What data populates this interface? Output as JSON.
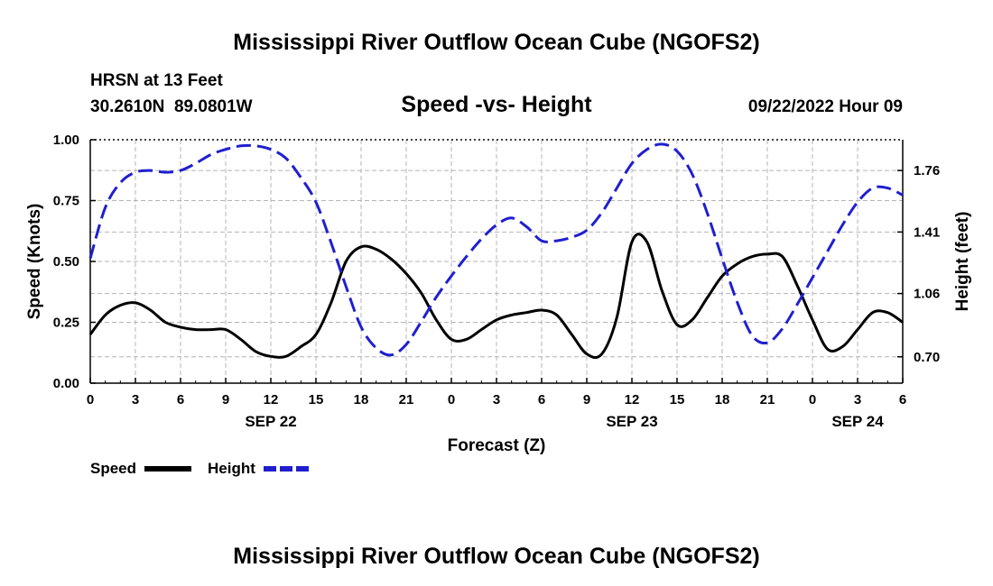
{
  "title": "Mississippi River Outflow Ocean Cube (NGOFS2)",
  "footer_title": "Mississippi River Outflow Ocean Cube (NGOFS2)",
  "station": {
    "name": "HRSN at 13 Feet",
    "coords": "30.2610N  89.0801W",
    "datetime": "09/22/2022 Hour 09"
  },
  "chart_data": {
    "type": "line",
    "title": "Speed -vs- Height",
    "xlabel": "Forecast (Z)",
    "ylabel": "Speed (Knots)",
    "y2label": "Height (feet)",
    "xlim": [
      0,
      54
    ],
    "ylim": [
      0,
      1.0
    ],
    "y2lim": [
      0.55,
      1.935
    ],
    "x_ticks": [
      0,
      3,
      6,
      9,
      12,
      15,
      18,
      21,
      24,
      27,
      30,
      33,
      36,
      39,
      42,
      45,
      48,
      51,
      54
    ],
    "x_tick_labels": [
      "0",
      "3",
      "6",
      "9",
      "12",
      "15",
      "18",
      "21",
      "0",
      "3",
      "6",
      "9",
      "12",
      "15",
      "18",
      "21",
      "0",
      "3",
      "6"
    ],
    "date_labels": [
      {
        "label": "SEP 22",
        "x": 12
      },
      {
        "label": "SEP 23",
        "x": 36
      },
      {
        "label": "SEP 24",
        "x": 51
      }
    ],
    "y_ticks": [
      0.0,
      0.25,
      0.5,
      0.75,
      1.0
    ],
    "y_tick_labels": [
      "0.00",
      "0.25",
      "0.50",
      "0.75",
      "1.00"
    ],
    "y2_ticks": [
      0.7,
      1.06,
      1.41,
      1.76
    ],
    "y2_tick_labels": [
      "0.70",
      "1.06",
      "1.41",
      "1.76"
    ],
    "grid": true,
    "legend": [
      {
        "name": "Speed",
        "color": "#000000",
        "dash": false
      },
      {
        "name": "Height",
        "color": "#1f1fd0",
        "dash": true
      }
    ],
    "series": [
      {
        "name": "Speed",
        "axis": "left",
        "color": "#000000",
        "x": [
          0,
          1,
          2,
          3,
          4,
          5,
          6,
          7,
          8,
          9,
          10,
          11,
          12,
          13,
          14,
          15,
          16,
          17,
          18,
          19,
          20,
          21,
          22,
          23,
          24,
          25,
          26,
          27,
          28,
          29,
          30,
          31,
          32,
          33,
          34,
          35,
          36,
          37,
          38,
          39,
          40,
          41,
          42,
          43,
          44,
          45,
          46,
          47,
          48,
          49,
          50,
          51,
          52,
          53,
          54
        ],
        "values": [
          0.2,
          0.28,
          0.32,
          0.33,
          0.3,
          0.25,
          0.23,
          0.22,
          0.22,
          0.22,
          0.18,
          0.13,
          0.11,
          0.11,
          0.15,
          0.2,
          0.33,
          0.5,
          0.56,
          0.55,
          0.51,
          0.45,
          0.37,
          0.26,
          0.18,
          0.18,
          0.22,
          0.26,
          0.28,
          0.29,
          0.3,
          0.28,
          0.2,
          0.12,
          0.12,
          0.27,
          0.58,
          0.58,
          0.38,
          0.24,
          0.26,
          0.35,
          0.44,
          0.49,
          0.52,
          0.53,
          0.52,
          0.4,
          0.26,
          0.14,
          0.15,
          0.22,
          0.29,
          0.29,
          0.25
        ]
      },
      {
        "name": "Height",
        "axis": "right",
        "color": "#1f1fd0",
        "x": [
          0,
          1,
          2,
          3,
          4,
          5,
          6,
          7,
          8,
          9,
          10,
          11,
          12,
          13,
          14,
          15,
          16,
          17,
          18,
          19,
          20,
          21,
          22,
          23,
          24,
          25,
          26,
          27,
          28,
          29,
          30,
          31,
          32,
          33,
          34,
          35,
          36,
          37,
          38,
          39,
          40,
          41,
          42,
          43,
          44,
          45,
          46,
          47,
          48,
          49,
          50,
          51,
          52,
          53,
          54
        ],
        "values": [
          1.26,
          1.55,
          1.69,
          1.75,
          1.76,
          1.75,
          1.76,
          1.8,
          1.85,
          1.88,
          1.9,
          1.9,
          1.88,
          1.83,
          1.72,
          1.58,
          1.35,
          1.1,
          0.87,
          0.75,
          0.71,
          0.77,
          0.9,
          1.04,
          1.16,
          1.27,
          1.37,
          1.45,
          1.49,
          1.44,
          1.36,
          1.36,
          1.38,
          1.42,
          1.52,
          1.66,
          1.8,
          1.88,
          1.91,
          1.87,
          1.74,
          1.52,
          1.26,
          1.01,
          0.82,
          0.78,
          0.86,
          1.0,
          1.15,
          1.3,
          1.45,
          1.58,
          1.66,
          1.66,
          1.62
        ]
      }
    ]
  }
}
